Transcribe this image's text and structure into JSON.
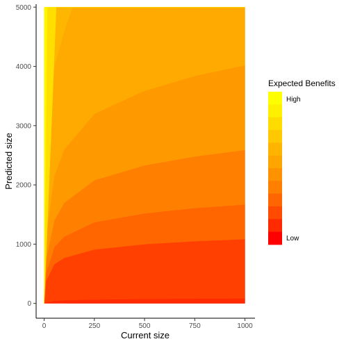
{
  "chart_data": {
    "type": "heatmap",
    "title": "",
    "xlabel": "Current size",
    "ylabel": "Predicted size",
    "xlim": [
      -40,
      1050
    ],
    "ylim": [
      -250,
      5050
    ],
    "data_x_range": [
      0,
      1000
    ],
    "data_y_range": [
      0,
      5000
    ],
    "x_ticks": [
      0,
      250,
      500,
      750,
      1000
    ],
    "y_ticks": [
      0,
      1000,
      2000,
      3000,
      4000,
      5000
    ],
    "grid": false,
    "legend": {
      "title": "Expected Benefits",
      "position": "right",
      "high_label": "High",
      "low_label": "Low",
      "colors_low_to_high": [
        "#FF0000",
        "#FF2A00",
        "#FF4B00",
        "#FF6600",
        "#FF7F00",
        "#FF9200",
        "#FFA500",
        "#FFB500",
        "#FFC800",
        "#FFDC00",
        "#FFF000",
        "#FFFF00"
      ]
    },
    "contour_boundaries": [
      {
        "level": 1,
        "y": [
          [
            0,
            0
          ],
          [
            10,
            20
          ],
          [
            50,
            45
          ],
          [
            100,
            55
          ],
          [
            250,
            65
          ],
          [
            500,
            75
          ],
          [
            750,
            80
          ],
          [
            1000,
            85
          ]
        ]
      },
      {
        "level": 2,
        "y": [
          [
            0,
            0
          ],
          [
            10,
            380
          ],
          [
            50,
            660
          ],
          [
            100,
            770
          ],
          [
            250,
            910
          ],
          [
            500,
            1000
          ],
          [
            750,
            1050
          ],
          [
            1000,
            1085
          ]
        ]
      },
      {
        "level": 3,
        "y": [
          [
            0,
            0
          ],
          [
            10,
            520
          ],
          [
            50,
            950
          ],
          [
            100,
            1130
          ],
          [
            250,
            1370
          ],
          [
            500,
            1520
          ],
          [
            750,
            1610
          ],
          [
            1000,
            1670
          ]
        ]
      },
      {
        "level": 4,
        "y": [
          [
            0,
            0
          ],
          [
            10,
            750
          ],
          [
            50,
            1400
          ],
          [
            100,
            1700
          ],
          [
            250,
            2080
          ],
          [
            500,
            2330
          ],
          [
            750,
            2480
          ],
          [
            1000,
            2590
          ]
        ]
      },
      {
        "level": 5,
        "y": [
          [
            0,
            0
          ],
          [
            10,
            1150
          ],
          [
            50,
            2150
          ],
          [
            100,
            2600
          ],
          [
            250,
            3200
          ],
          [
            500,
            3590
          ],
          [
            750,
            3840
          ],
          [
            1000,
            4020
          ]
        ]
      },
      {
        "level": 6,
        "y": [
          [
            0,
            0
          ],
          [
            10,
            2300
          ],
          [
            50,
            4000
          ],
          [
            100,
            4600
          ],
          [
            140,
            5000
          ],
          [
            1000,
            5000
          ]
        ]
      },
      {
        "level": 7,
        "y": [
          [
            0,
            0
          ],
          [
            10,
            5000
          ],
          [
            300,
            5000
          ],
          [
            1000,
            5000
          ]
        ]
      },
      {
        "level": 8,
        "y": [
          [
            0,
            0
          ],
          [
            60,
            5000
          ],
          [
            1000,
            5000
          ]
        ]
      },
      {
        "level": 9,
        "y": [
          [
            0,
            0
          ],
          [
            15,
            5000
          ],
          [
            1000,
            5000
          ]
        ]
      }
    ],
    "band_colors": [
      "#FF2A00",
      "#FF4000",
      "#FF6600",
      "#FF8000",
      "#FF9900",
      "#FFAA00",
      "#FFB600",
      "#FFC800",
      "#FFDF00",
      "#FFF600"
    ]
  }
}
